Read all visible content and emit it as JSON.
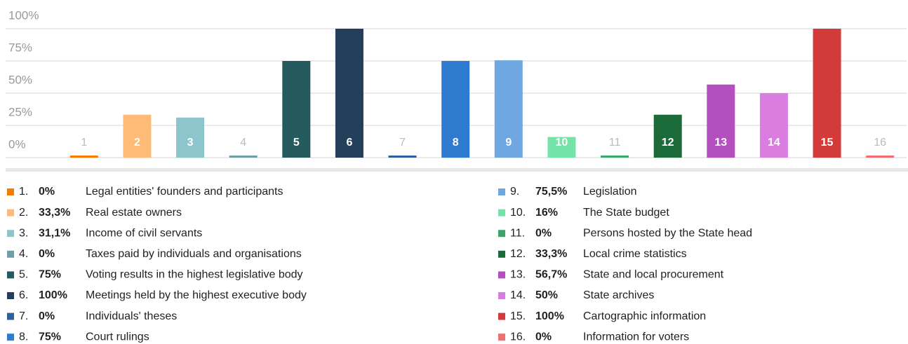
{
  "chart_data": {
    "type": "bar",
    "categories": [
      "1",
      "2",
      "3",
      "4",
      "5",
      "6",
      "7",
      "8",
      "9",
      "10",
      "11",
      "12",
      "13",
      "14",
      "15",
      "16"
    ],
    "values": [
      0,
      33.3,
      31.1,
      0,
      75,
      100,
      0,
      75,
      75.5,
      16,
      0,
      33.3,
      56.7,
      50,
      100,
      0
    ],
    "value_labels": [
      "0%",
      "33,3%",
      "31,1%",
      "0%",
      "75%",
      "100%",
      "0%",
      "75%",
      "75,5%",
      "16%",
      "0%",
      "33,3%",
      "56,7%",
      "50%",
      "100%",
      "0%"
    ],
    "colors": [
      "#f57c00",
      "#fdbb77",
      "#8ec5cc",
      "#6e9ea6",
      "#255b5e",
      "#243f5c",
      "#2e5f9e",
      "#2f7bd0",
      "#6fa8e0",
      "#73e3a7",
      "#3aa66a",
      "#1a6a3a",
      "#b44fc0",
      "#d97de0",
      "#d33a3a",
      "#f07070"
    ],
    "legend_numbers": [
      "1.",
      "2.",
      "3.",
      "4.",
      "5.",
      "6.",
      "7.",
      "8.",
      "9.",
      "10.",
      "11.",
      "12.",
      "13.",
      "14.",
      "15.",
      "16."
    ],
    "category_names": [
      "Legal entities' founders and participants",
      "Real estate owners",
      "Income of civil servants",
      "Taxes paid by individuals and organisations",
      "Voting results in the highest legislative body",
      "Meetings held by the highest executive body",
      "Individuals' theses",
      "Court rulings",
      "Legislation",
      "The State budget",
      "Persons hosted by the State head",
      "Local crime statistics",
      "State and local procurement",
      "State archives",
      "Cartographic information",
      "Information for voters"
    ],
    "ylim": [
      0,
      100
    ],
    "yticks": [
      {
        "value": 0,
        "label": "0%"
      },
      {
        "value": 25,
        "label": "25%"
      },
      {
        "value": 50,
        "label": "50%"
      },
      {
        "value": 75,
        "label": "75%"
      },
      {
        "value": 100,
        "label": "100%"
      }
    ],
    "grid": true
  }
}
